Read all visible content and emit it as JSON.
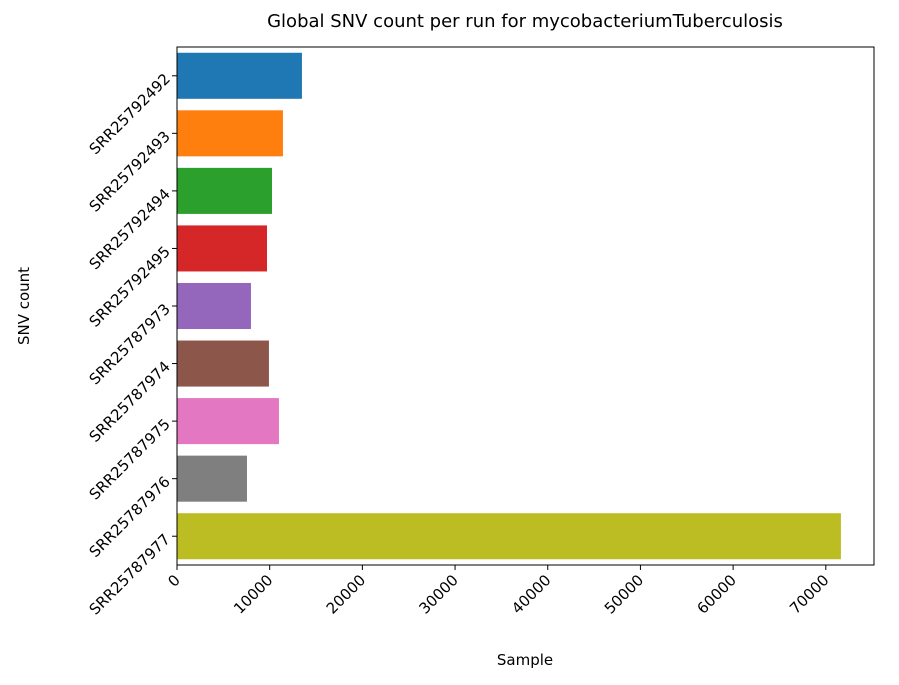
{
  "chart_data": {
    "type": "hbar",
    "title": "Global SNV count per run for mycobacteriumTuberculosis",
    "x_label": "Sample",
    "y_label": "SNV count",
    "categories": [
      "SRR25792492",
      "SRR25792493",
      "SRR25792494",
      "SRR25792495",
      "SRR25787973",
      "SRR25787974",
      "SRR25787975",
      "SRR25787976",
      "SRR25787977"
    ],
    "values": [
      13480,
      11430,
      10250,
      9710,
      7980,
      9920,
      11000,
      7550,
      71630
    ],
    "colors": [
      "#1f77b4",
      "#ff7f0e",
      "#2ca02c",
      "#d62728",
      "#9467bd",
      "#8c564b",
      "#e377c2",
      "#7f7f7f",
      "#bcbd22"
    ],
    "xlim": [
      0,
      75200
    ],
    "xticks": [
      0,
      10000,
      20000,
      30000,
      40000,
      50000,
      60000,
      70000
    ]
  }
}
